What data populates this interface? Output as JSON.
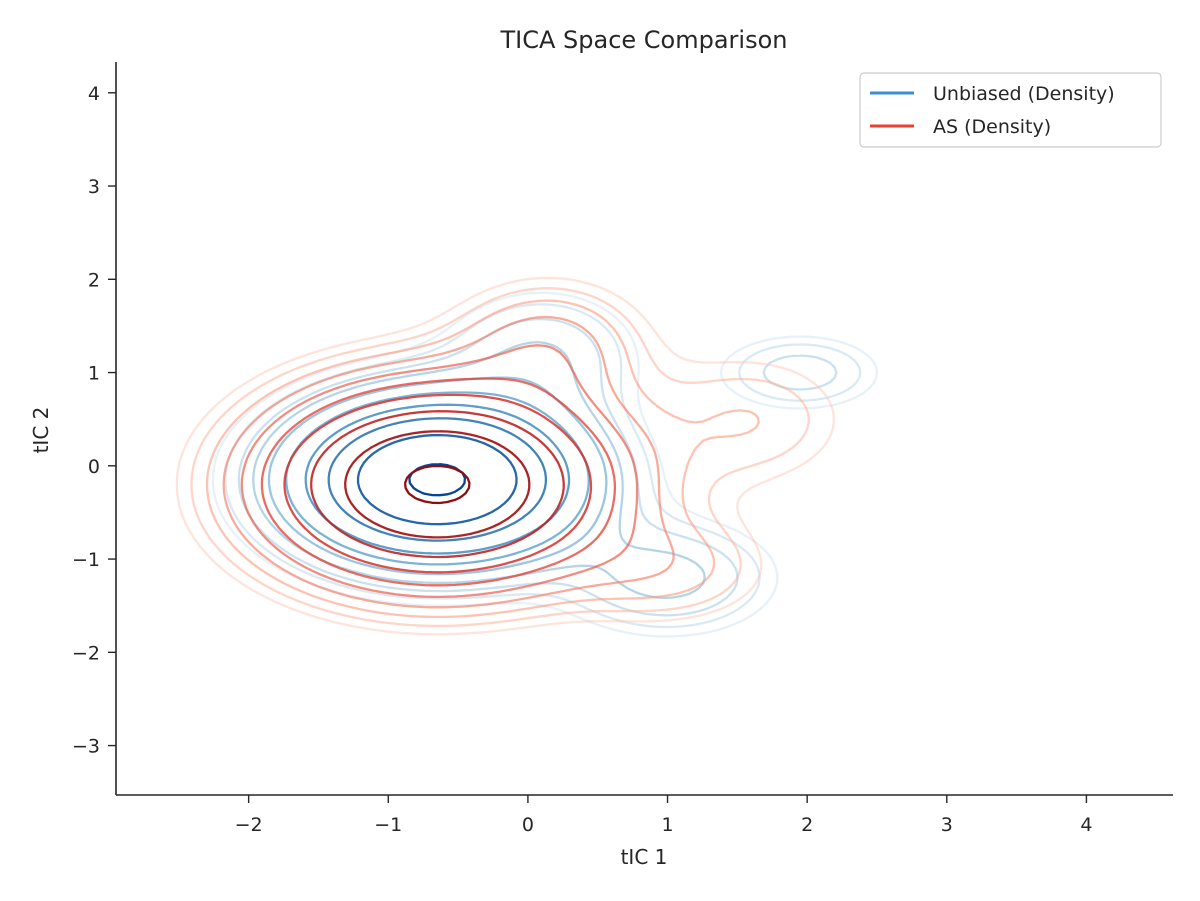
{
  "chart_data": {
    "type": "contour",
    "title": "TICA Space Comparison",
    "xlabel": "tIC 1",
    "ylabel": "tIC 2",
    "xlim": [
      -2.95,
      4.62
    ],
    "ylim": [
      -3.53,
      4.33
    ],
    "xticks": [
      -2,
      -1,
      0,
      1,
      2,
      3,
      4
    ],
    "yticks": [
      -3,
      -2,
      -1,
      0,
      1,
      2,
      3,
      4
    ],
    "xtick_labels": [
      "−2",
      "−1",
      "0",
      "1",
      "2",
      "3",
      "4"
    ],
    "ytick_labels": [
      "−3",
      "−2",
      "−1",
      "0",
      "1",
      "2",
      "3",
      "4"
    ],
    "grid": false,
    "legend": {
      "position": "top-right"
    },
    "series": [
      {
        "name": "Unbiased (Density)",
        "legend_color": "#3a8fd0",
        "colormap": "Blues",
        "levels": 10,
        "components": [
          {
            "center": [
              -0.65,
              -0.15
            ],
            "spread": [
              0.62,
              0.52
            ],
            "weight": 1.0
          },
          {
            "center": [
              0.1,
              1.2
            ],
            "spread": [
              0.45,
              0.45
            ],
            "weight": 0.1
          },
          {
            "center": [
              1.0,
              -1.2
            ],
            "spread": [
              0.5,
              0.4
            ],
            "weight": 0.12
          },
          {
            "center": [
              1.95,
              1.0
            ],
            "spread": [
              0.4,
              0.28
            ],
            "weight": 0.09
          }
        ]
      },
      {
        "name": "AS (Density)",
        "legend_color": "#e8412e",
        "colormap": "Reds",
        "levels": 10,
        "components": [
          {
            "center": [
              -0.65,
              -0.2
            ],
            "spread": [
              0.72,
              0.62
            ],
            "weight": 1.0
          },
          {
            "center": [
              0.15,
              1.3
            ],
            "spread": [
              0.45,
              0.45
            ],
            "weight": 0.12
          },
          {
            "center": [
              1.0,
              -1.1
            ],
            "spread": [
              0.5,
              0.4
            ],
            "weight": 0.08
          },
          {
            "center": [
              1.6,
              0.5
            ],
            "spread": [
              0.5,
              0.5
            ],
            "weight": 0.07
          }
        ]
      }
    ]
  }
}
